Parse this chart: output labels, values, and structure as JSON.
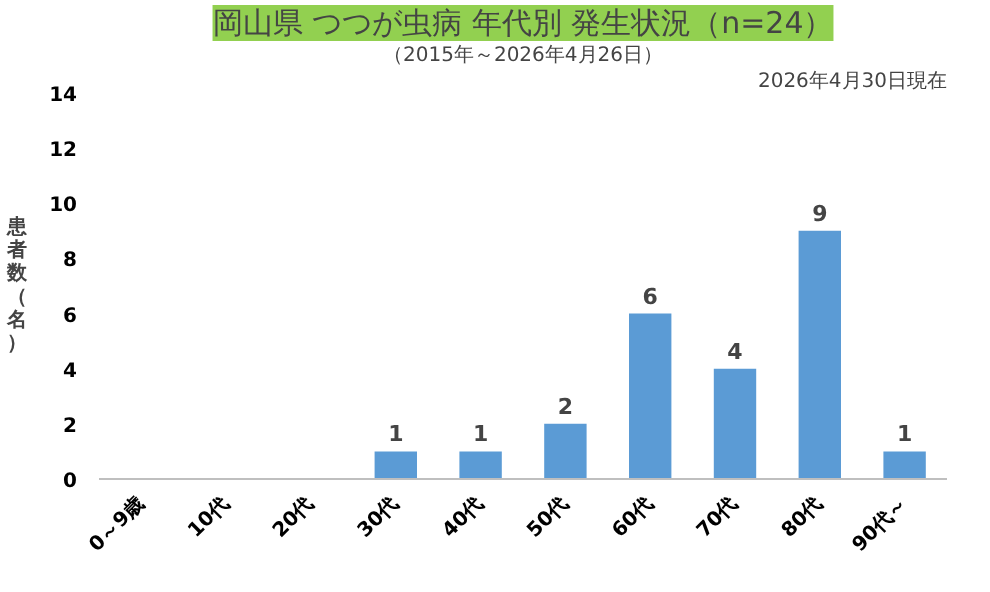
{
  "chart_data": {
    "type": "bar",
    "title": "岡山県 つつが虫病 年代別 発生状況（n=24）",
    "subtitle": "（2015年～2026年4月26日）",
    "annotations": [
      "2026年4月30日現在"
    ],
    "ylabel": "患者数（名）",
    "categories": [
      "0～9歳",
      "10代",
      "20代",
      "30代",
      "40代",
      "50代",
      "60代",
      "70代",
      "80代",
      "90代～"
    ],
    "values": [
      0,
      0,
      0,
      1,
      1,
      2,
      6,
      4,
      9,
      1
    ],
    "value_labels": [
      null,
      null,
      null,
      "1",
      "1",
      "2",
      "6",
      "4",
      "9",
      "1"
    ],
    "color": "#5b9bd5",
    "ylim": [
      0,
      14
    ],
    "yticks": [
      0,
      2,
      4,
      6,
      8,
      10,
      12,
      14
    ],
    "grid": false
  }
}
